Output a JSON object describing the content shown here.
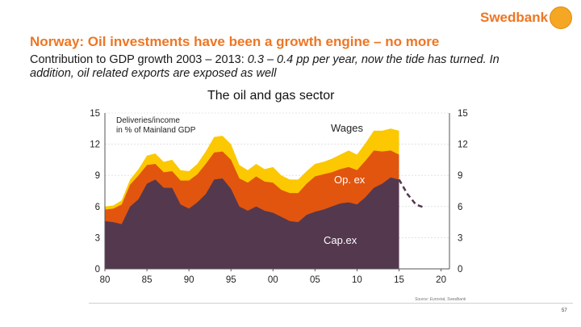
{
  "header": {
    "brand": "Swedbank",
    "title": "Norway: Oil investments have been a growth engine – no more",
    "subtitle_normal": "Contribution to GDP growth 2003 – 2013: ",
    "subtitle_italic": "0.3 – 0.4 pp per year, now the tide has turned. In addition, oil related exports are exposed as well"
  },
  "footer": {
    "source": "Source: Eurostat, Swedbank",
    "page_number": "57"
  },
  "chart_data": {
    "type": "area",
    "title": "The oil and gas sector",
    "ylabel_line1": "Deliveries/income",
    "ylabel_line2": "in % of Mainland GDP",
    "xlabel": "",
    "xlim": [
      80,
      21
    ],
    "ylim": [
      0,
      15
    ],
    "xtick_labels": [
      "80",
      "85",
      "90",
      "95",
      "00",
      "05",
      "10",
      "15",
      "20"
    ],
    "ytick_labels": [
      "0",
      "3",
      "6",
      "9",
      "12",
      "15"
    ],
    "x": [
      1980,
      1981,
      1982,
      1983,
      1984,
      1985,
      1986,
      1987,
      1988,
      1989,
      1990,
      1991,
      1992,
      1993,
      1994,
      1995,
      1996,
      1997,
      1998,
      1999,
      2000,
      2001,
      2002,
      2003,
      2004,
      2005,
      2006,
      2007,
      2008,
      2009,
      2010,
      2011,
      2012,
      2013,
      2014,
      2015
    ],
    "stack_order_note": "values are cumulative (top of each band)",
    "series": [
      {
        "name": "Cap.ex",
        "color": "#54384e",
        "values": [
          4.6,
          4.5,
          4.3,
          6.0,
          6.7,
          8.2,
          8.6,
          7.8,
          7.8,
          6.2,
          5.8,
          6.4,
          7.2,
          8.6,
          8.7,
          7.7,
          6.0,
          5.6,
          6.0,
          5.6,
          5.4,
          5.0,
          4.6,
          4.5,
          5.2,
          5.5,
          5.7,
          6.0,
          6.3,
          6.4,
          6.2,
          6.9,
          7.8,
          8.2,
          8.8,
          8.6
        ]
      },
      {
        "name": "Op. ex",
        "color": "#e2550e",
        "values": [
          5.7,
          5.8,
          6.2,
          8.1,
          9.0,
          10.0,
          10.1,
          9.3,
          9.4,
          8.5,
          8.5,
          9.1,
          10.1,
          11.2,
          11.3,
          10.5,
          8.7,
          8.3,
          8.9,
          8.4,
          8.3,
          7.6,
          7.3,
          7.3,
          8.2,
          8.9,
          9.1,
          9.3,
          9.6,
          9.8,
          9.5,
          10.4,
          11.4,
          11.3,
          11.4,
          11.0
        ]
      },
      {
        "name": "Wages",
        "color": "#fbc802",
        "values": [
          6.0,
          6.1,
          6.6,
          8.6,
          9.6,
          10.9,
          11.1,
          10.3,
          10.5,
          9.5,
          9.4,
          10.1,
          11.3,
          12.7,
          12.8,
          12.0,
          10.0,
          9.5,
          10.1,
          9.6,
          9.8,
          9.0,
          8.6,
          8.6,
          9.4,
          10.1,
          10.3,
          10.6,
          11.0,
          11.4,
          11.0,
          12.1,
          13.3,
          13.3,
          13.5,
          13.3
        ]
      }
    ],
    "projection": {
      "name": "Projection",
      "color": "#54384e",
      "x": [
        2015,
        2016,
        2017,
        2018
      ],
      "values": [
        8.6,
        7.2,
        6.2,
        5.9
      ]
    },
    "annotations": [
      "Wages",
      "Op. ex",
      "Cap.ex"
    ]
  }
}
